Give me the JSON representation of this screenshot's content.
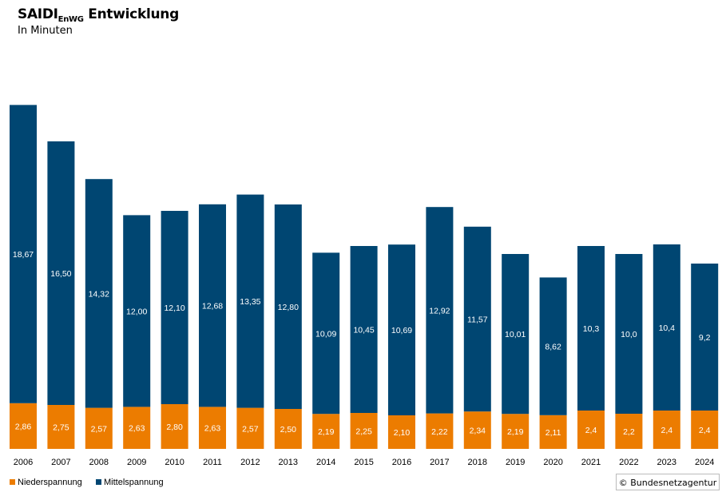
{
  "chart_data": {
    "type": "bar",
    "stacked": true,
    "title": "SAIDI",
    "title_subscript": "EnWG",
    "title_suffix": "Entwicklung",
    "subtitle": "In Minuten",
    "categories": [
      "2006",
      "2007",
      "2008",
      "2009",
      "2010",
      "2011",
      "2012",
      "2013",
      "2014",
      "2015",
      "2016",
      "2017",
      "2018",
      "2019",
      "2020",
      "2021",
      "2022",
      "2023",
      "2024"
    ],
    "series": [
      {
        "name": "Niederspannung",
        "color": "#EC7C00",
        "values": [
          2.86,
          2.75,
          2.57,
          2.63,
          2.8,
          2.63,
          2.57,
          2.5,
          2.19,
          2.25,
          2.1,
          2.22,
          2.34,
          2.19,
          2.11,
          2.4,
          2.2,
          2.4,
          2.4
        ],
        "labels": [
          "2,86",
          "2,75",
          "2,57",
          "2,63",
          "2,80",
          "2,63",
          "2,57",
          "2,50",
          "2,19",
          "2,25",
          "2,10",
          "2,22",
          "2,34",
          "2,19",
          "2,11",
          "2,4",
          "2,2",
          "2,4",
          "2,4"
        ]
      },
      {
        "name": "Mittelspannung",
        "color": "#004672",
        "values": [
          18.67,
          16.5,
          14.32,
          12.0,
          12.1,
          12.68,
          13.35,
          12.8,
          10.09,
          10.45,
          10.69,
          12.92,
          11.57,
          10.01,
          8.62,
          10.3,
          10.0,
          10.4,
          9.2
        ],
        "labels": [
          "18,67",
          "16,50",
          "14,32",
          "12,00",
          "12,10",
          "12,68",
          "13,35",
          "12,80",
          "10,09",
          "10,45",
          "10,69",
          "12,92",
          "11,57",
          "10,01",
          "8,62",
          "10,3",
          "10,0",
          "10,4",
          "9,2"
        ]
      }
    ],
    "ylim": [
      0,
      23
    ],
    "grid": false,
    "y_axis_shown": false,
    "legend": "bottom-left"
  },
  "credit": "© Bundesnetzagentur"
}
